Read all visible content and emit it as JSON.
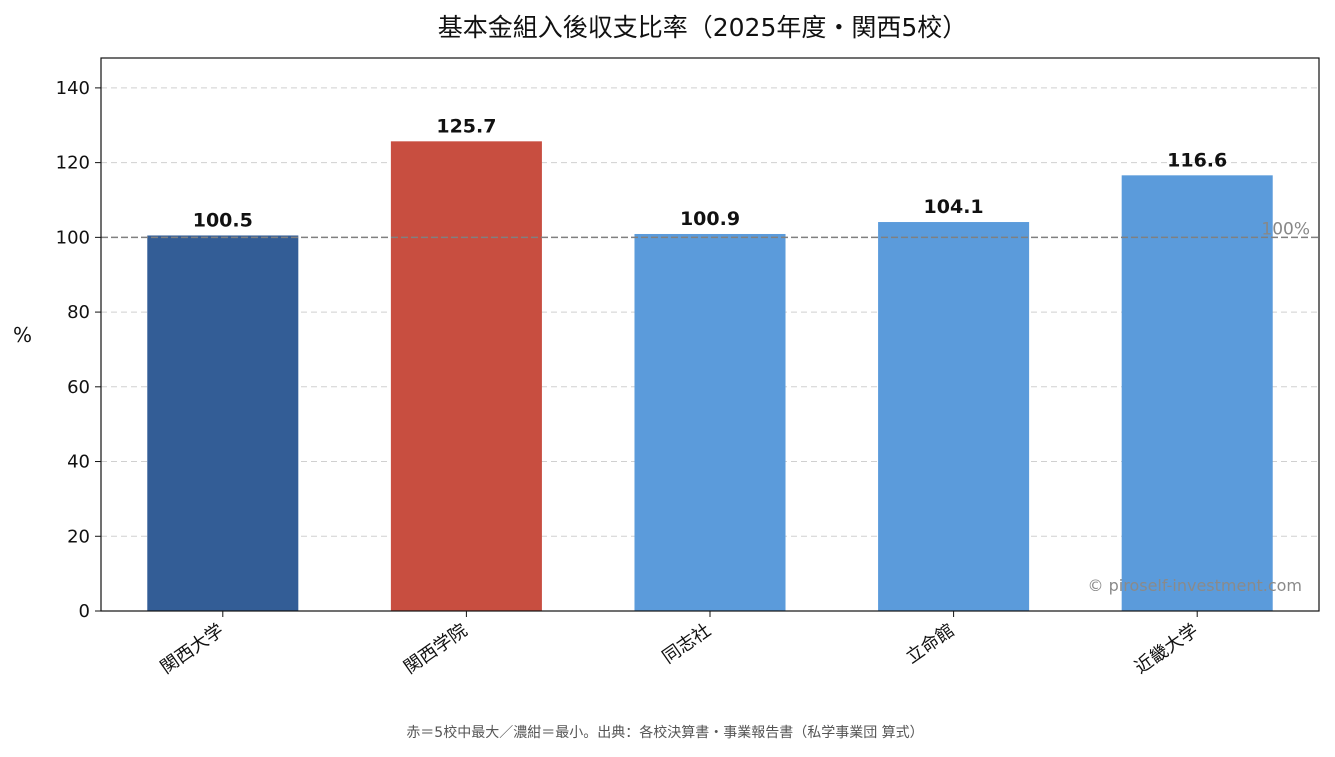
{
  "chart_data": {
    "type": "bar",
    "title": "基本金組入後収支比率（2025年度・関西5校）",
    "ylabel": "%",
    "xlabel": "",
    "categories": [
      "関西大学",
      "関西学院",
      "同志社",
      "立命館",
      "近畿大学"
    ],
    "values": [
      100.5,
      125.7,
      100.9,
      104.1,
      116.6
    ],
    "value_labels": [
      "100.5",
      "125.7",
      "100.9",
      "104.1",
      "116.6"
    ],
    "bar_colors": [
      "#335d96",
      "#c84e40",
      "#5b9bdb",
      "#5b9bdb",
      "#5b9bdb"
    ],
    "ylim": [
      0,
      148
    ],
    "yticks": [
      0,
      20,
      40,
      60,
      80,
      100,
      120,
      140
    ],
    "ytick_labels": [
      "0",
      "20",
      "40",
      "60",
      "80",
      "100",
      "120",
      "140"
    ],
    "grid": true,
    "reference_line": {
      "value": 100,
      "label": "100%",
      "color": "#808080"
    },
    "watermark": "© piroself-investment.com",
    "footnote": "赤＝5校中最大／濃紺＝最小。出典：各校決算書・事業報告書（私学事業団 算式）"
  }
}
